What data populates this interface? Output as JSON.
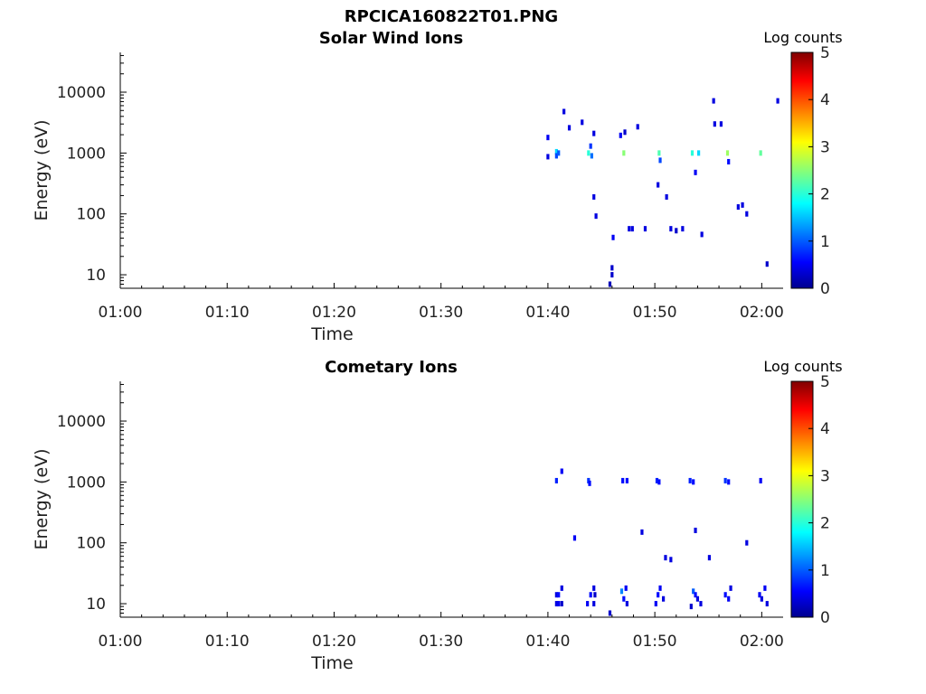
{
  "figure_title": "RPCICA160822T01.PNG",
  "chart_data": [
    {
      "type": "heatmap",
      "title": "Solar Wind Ions",
      "xlabel": "Time",
      "ylabel": "Energy (eV)",
      "x_ticks": [
        "01:00",
        "01:10",
        "01:20",
        "01:30",
        "01:40",
        "01:50",
        "02:00"
      ],
      "x_range_min": [
        0,
        62
      ],
      "y_scale": "log",
      "y_ticks": [
        10,
        100,
        1000,
        10000
      ],
      "y_range": [
        6,
        45000
      ],
      "colorbar": {
        "label": "Log counts",
        "ticks": [
          0,
          1,
          2,
          3,
          4,
          5
        ],
        "range": [
          0,
          5
        ],
        "colormap": "jet"
      },
      "points": [
        [
          40.0,
          1800,
          0.5
        ],
        [
          40.0,
          870,
          0.4
        ],
        [
          40.8,
          1050,
          1.6
        ],
        [
          40.8,
          900,
          0.9
        ],
        [
          41.0,
          1000,
          1.0
        ],
        [
          41.5,
          4800,
          0.4
        ],
        [
          42.0,
          2600,
          0.4
        ],
        [
          43.2,
          3200,
          0.4
        ],
        [
          43.8,
          1000,
          2.0
        ],
        [
          44.0,
          1300,
          0.8
        ],
        [
          44.1,
          900,
          1.1
        ],
        [
          44.3,
          2100,
          0.4
        ],
        [
          44.3,
          190,
          0.4
        ],
        [
          44.5,
          92,
          0.4
        ],
        [
          45.8,
          7,
          0.2
        ],
        [
          46.0,
          10,
          0.3
        ],
        [
          46.0,
          13,
          0.3
        ],
        [
          46.1,
          41,
          0.5
        ],
        [
          46.8,
          1950,
          0.5
        ],
        [
          47.1,
          1000,
          2.5
        ],
        [
          47.2,
          2200,
          0.3
        ],
        [
          47.6,
          57,
          0.4
        ],
        [
          47.9,
          57,
          0.4
        ],
        [
          48.4,
          2700,
          0.4
        ],
        [
          49.1,
          57,
          0.4
        ],
        [
          50.4,
          1000,
          2.2
        ],
        [
          50.5,
          760,
          0.9
        ],
        [
          50.3,
          300,
          0.4
        ],
        [
          51.1,
          190,
          0.4
        ],
        [
          51.5,
          57,
          0.4
        ],
        [
          52.0,
          53,
          0.3
        ],
        [
          52.6,
          57,
          0.4
        ],
        [
          53.5,
          1000,
          2.0
        ],
        [
          53.8,
          480,
          0.5
        ],
        [
          54.1,
          1000,
          1.6
        ],
        [
          54.4,
          46,
          0.4
        ],
        [
          55.5,
          7200,
          0.4
        ],
        [
          55.6,
          3000,
          0.4
        ],
        [
          56.2,
          3000,
          0.4
        ],
        [
          56.8,
          1000,
          2.6
        ],
        [
          56.9,
          720,
          0.6
        ],
        [
          57.8,
          130,
          0.4
        ],
        [
          58.2,
          140,
          0.4
        ],
        [
          58.6,
          100,
          0.4
        ],
        [
          59.9,
          1000,
          2.3
        ],
        [
          60.5,
          15,
          0.3
        ],
        [
          61.5,
          7200,
          0.4
        ]
      ]
    },
    {
      "type": "heatmap",
      "title": "Cometary Ions",
      "xlabel": "Time",
      "ylabel": "Energy (eV)",
      "x_ticks": [
        "01:00",
        "01:10",
        "01:20",
        "01:30",
        "01:40",
        "01:50",
        "02:00"
      ],
      "x_range_min": [
        0,
        62
      ],
      "y_scale": "log",
      "y_ticks": [
        10,
        100,
        1000,
        10000
      ],
      "y_range": [
        6,
        45000
      ],
      "colorbar": {
        "label": "Log counts",
        "ticks": [
          0,
          1,
          2,
          3,
          4,
          5
        ],
        "range": [
          0,
          5
        ],
        "colormap": "jet"
      },
      "points": [
        [
          40.8,
          1050,
          0.7
        ],
        [
          41.3,
          1500,
          0.5
        ],
        [
          43.8,
          1050,
          0.8
        ],
        [
          43.9,
          950,
          0.6
        ],
        [
          42.5,
          120,
          0.5
        ],
        [
          47.0,
          1050,
          0.6
        ],
        [
          47.4,
          1050,
          0.6
        ],
        [
          50.2,
          1050,
          0.7
        ],
        [
          50.4,
          1000,
          0.6
        ],
        [
          53.3,
          1050,
          0.7
        ],
        [
          53.6,
          1000,
          0.6
        ],
        [
          56.6,
          1050,
          0.8
        ],
        [
          56.9,
          1000,
          0.6
        ],
        [
          59.9,
          1050,
          0.5
        ],
        [
          48.8,
          150,
          0.4
        ],
        [
          51.0,
          57,
          0.4
        ],
        [
          51.5,
          53,
          0.4
        ],
        [
          53.8,
          160,
          0.4
        ],
        [
          55.1,
          57,
          0.4
        ],
        [
          58.6,
          100,
          0.4
        ],
        [
          45.8,
          7,
          0.3
        ],
        [
          40.8,
          14,
          0.4
        ],
        [
          40.8,
          10,
          0.4
        ],
        [
          41.0,
          14,
          0.6
        ],
        [
          41.0,
          10,
          0.5
        ],
        [
          41.3,
          18,
          0.4
        ],
        [
          41.3,
          10,
          0.3
        ],
        [
          43.7,
          10,
          0.5
        ],
        [
          44.0,
          14,
          0.6
        ],
        [
          44.3,
          10,
          0.4
        ],
        [
          44.3,
          18,
          0.4
        ],
        [
          44.4,
          14,
          0.3
        ],
        [
          46.9,
          16,
          1.2
        ],
        [
          47.1,
          12,
          0.6
        ],
        [
          47.4,
          10,
          0.4
        ],
        [
          47.3,
          18,
          0.5
        ],
        [
          50.1,
          10,
          0.5
        ],
        [
          50.3,
          14,
          0.6
        ],
        [
          50.5,
          18,
          0.5
        ],
        [
          50.8,
          12,
          0.4
        ],
        [
          53.4,
          9,
          0.3
        ],
        [
          53.6,
          16,
          1.0
        ],
        [
          53.8,
          14,
          0.6
        ],
        [
          54.0,
          12,
          0.4
        ],
        [
          54.3,
          10,
          0.4
        ],
        [
          56.6,
          14,
          0.6
        ],
        [
          56.9,
          12,
          0.5
        ],
        [
          57.1,
          18,
          0.4
        ],
        [
          59.8,
          14,
          0.5
        ],
        [
          60.0,
          12,
          0.4
        ],
        [
          60.3,
          18,
          0.5
        ],
        [
          60.5,
          10,
          0.4
        ]
      ]
    }
  ]
}
